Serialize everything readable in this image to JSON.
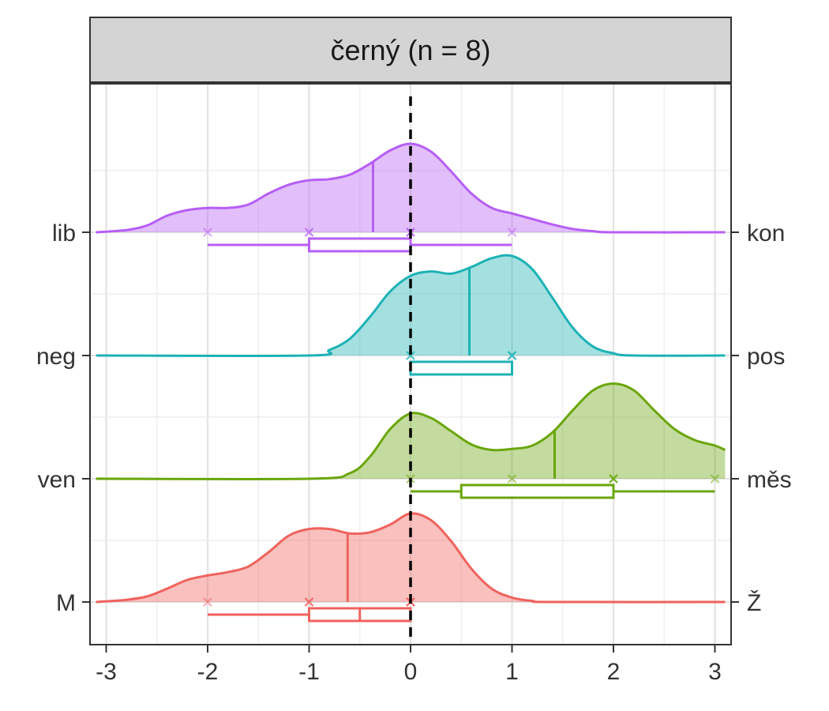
{
  "chart_data": {
    "type": "ridgeline",
    "facet_title": "černý (n = 8)",
    "x_ticks": [
      -3,
      -2,
      -1,
      0,
      1,
      2,
      3
    ],
    "x_ticks_text": [
      "-3",
      "-2",
      "-1",
      "0",
      "1",
      "2",
      "3"
    ],
    "xlim": [
      -3.1,
      3.1
    ],
    "reference_line_x": 0,
    "grid": true,
    "series": [
      {
        "left_label": "M",
        "right_label": "Ž",
        "color": "#F0625D",
        "points": [
          -2,
          -1,
          -1,
          -1,
          0,
          0,
          0,
          0
        ],
        "box": {
          "min": -2,
          "q1": -1,
          "median": -0.5,
          "q3": 0,
          "max": 0
        },
        "density_median": -0.62,
        "density": [
          [
            -3.1,
            0.0
          ],
          [
            -2.8,
            0.02
          ],
          [
            -2.6,
            0.05
          ],
          [
            -2.4,
            0.12
          ],
          [
            -2.2,
            0.2
          ],
          [
            -2.0,
            0.24
          ],
          [
            -1.8,
            0.27
          ],
          [
            -1.6,
            0.32
          ],
          [
            -1.4,
            0.45
          ],
          [
            -1.2,
            0.6
          ],
          [
            -1.0,
            0.66
          ],
          [
            -0.8,
            0.66
          ],
          [
            -0.6,
            0.62
          ],
          [
            -0.4,
            0.63
          ],
          [
            -0.2,
            0.7
          ],
          [
            0.0,
            0.8
          ],
          [
            0.2,
            0.74
          ],
          [
            0.4,
            0.55
          ],
          [
            0.6,
            0.3
          ],
          [
            0.8,
            0.12
          ],
          [
            1.0,
            0.04
          ],
          [
            1.2,
            0.01
          ],
          [
            1.4,
            0.0
          ],
          [
            3.1,
            0.0
          ]
        ]
      },
      {
        "left_label": "ven",
        "right_label": "měs",
        "color": "#6AA60C",
        "points": [
          0,
          1,
          2,
          2,
          2,
          3
        ],
        "box": {
          "min": 0,
          "q1": 0.5,
          "median": 2,
          "q3": 2,
          "max": 3
        },
        "density_median": 1.42,
        "density": [
          [
            -3.1,
            0.0
          ],
          [
            -1.0,
            0.0
          ],
          [
            -0.6,
            0.05
          ],
          [
            -0.4,
            0.2
          ],
          [
            -0.2,
            0.45
          ],
          [
            0.0,
            0.59
          ],
          [
            0.2,
            0.55
          ],
          [
            0.4,
            0.43
          ],
          [
            0.6,
            0.31
          ],
          [
            0.8,
            0.26
          ],
          [
            1.0,
            0.27
          ],
          [
            1.2,
            0.3
          ],
          [
            1.4,
            0.42
          ],
          [
            1.6,
            0.62
          ],
          [
            1.8,
            0.8
          ],
          [
            2.0,
            0.86
          ],
          [
            2.2,
            0.8
          ],
          [
            2.4,
            0.62
          ],
          [
            2.6,
            0.45
          ],
          [
            2.8,
            0.35
          ],
          [
            3.0,
            0.3
          ],
          [
            3.1,
            0.26
          ]
        ]
      },
      {
        "left_label": "neg",
        "right_label": "pos",
        "color": "#1DB2B5",
        "points": [
          0,
          0,
          1,
          1,
          1
        ],
        "box": {
          "min": 0,
          "q1": 0,
          "median": 1,
          "q3": 1,
          "max": 1
        },
        "density_median": 0.58,
        "density": [
          [
            -3.1,
            0.0
          ],
          [
            -1.0,
            0.0
          ],
          [
            -0.8,
            0.05
          ],
          [
            -0.6,
            0.15
          ],
          [
            -0.4,
            0.35
          ],
          [
            -0.2,
            0.58
          ],
          [
            0.0,
            0.72
          ],
          [
            0.2,
            0.76
          ],
          [
            0.4,
            0.74
          ],
          [
            0.6,
            0.8
          ],
          [
            0.8,
            0.88
          ],
          [
            1.0,
            0.9
          ],
          [
            1.2,
            0.78
          ],
          [
            1.4,
            0.52
          ],
          [
            1.6,
            0.25
          ],
          [
            1.8,
            0.08
          ],
          [
            2.0,
            0.02
          ],
          [
            2.2,
            0.0
          ],
          [
            3.1,
            0.0
          ]
        ]
      },
      {
        "left_label": "lib",
        "right_label": "kon",
        "color": "#B65EF5",
        "points": [
          -2,
          -1,
          -1,
          0,
          0,
          0,
          1
        ],
        "box": {
          "min": -2,
          "q1": -1,
          "median": 0,
          "q3": 0,
          "max": 1
        },
        "density_median": -0.37,
        "density": [
          [
            -3.1,
            0.0
          ],
          [
            -2.8,
            0.02
          ],
          [
            -2.6,
            0.06
          ],
          [
            -2.4,
            0.15
          ],
          [
            -2.2,
            0.2
          ],
          [
            -2.0,
            0.22
          ],
          [
            -1.8,
            0.22
          ],
          [
            -1.6,
            0.25
          ],
          [
            -1.4,
            0.35
          ],
          [
            -1.2,
            0.43
          ],
          [
            -1.0,
            0.47
          ],
          [
            -0.8,
            0.48
          ],
          [
            -0.6,
            0.52
          ],
          [
            -0.4,
            0.62
          ],
          [
            -0.2,
            0.74
          ],
          [
            0.0,
            0.8
          ],
          [
            0.2,
            0.73
          ],
          [
            0.4,
            0.55
          ],
          [
            0.6,
            0.35
          ],
          [
            0.8,
            0.22
          ],
          [
            1.0,
            0.17
          ],
          [
            1.2,
            0.12
          ],
          [
            1.4,
            0.07
          ],
          [
            1.6,
            0.03
          ],
          [
            1.8,
            0.01
          ],
          [
            2.0,
            0.0
          ],
          [
            3.1,
            0.0
          ]
        ]
      }
    ]
  }
}
